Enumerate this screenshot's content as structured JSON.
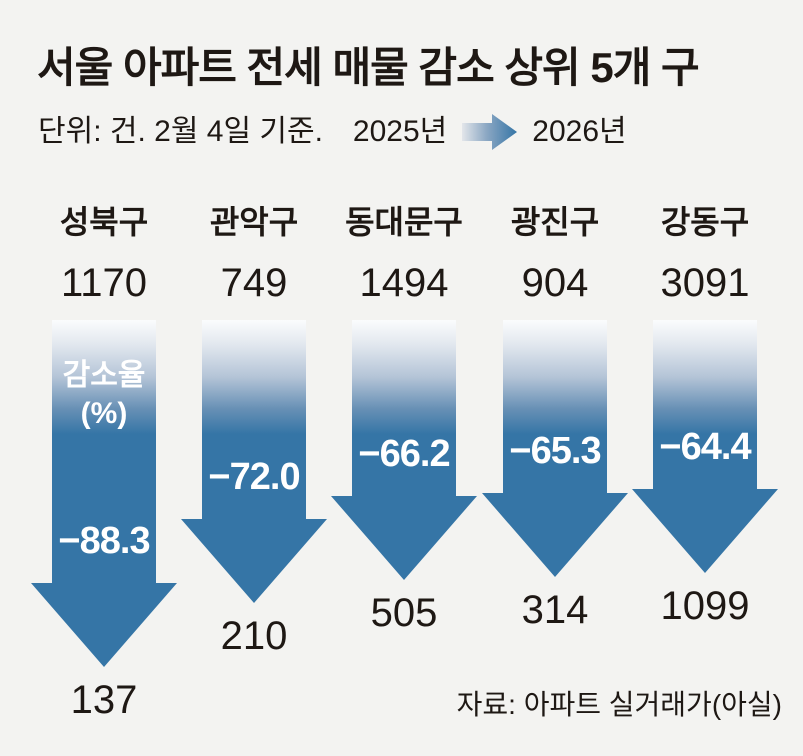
{
  "title": "서울 아파트 전세 매물 감소 상위 5개 구",
  "subtitle": {
    "unit_note": "단위: 건. 2월 4일 기준.",
    "legend_from": "2025년",
    "legend_to": "2026년"
  },
  "source": "자료: 아파트 실거래가(아실)",
  "colors": {
    "background": "#f3f3f1",
    "arrow_blue": "#3575a6",
    "arrow_gradient_top": "#fbfcfd",
    "text_dark": "#1e1814",
    "label_white": "#ffffff"
  },
  "chart_data": {
    "type": "bar",
    "subtype": "pictograph-down-arrows",
    "title": "서울 아파트 전세 매물 감소 상위 5개 구",
    "unit": "건 (listings)",
    "as_of": "2월 4일 기준",
    "categories": [
      "성북구",
      "관악구",
      "동대문구",
      "광진구",
      "강동구"
    ],
    "series": [
      {
        "name": "2025년",
        "values": [
          1170,
          749,
          1494,
          904,
          3091
        ]
      },
      {
        "name": "2026년",
        "values": [
          137,
          210,
          505,
          314,
          1099
        ]
      },
      {
        "name": "감소율(%)",
        "values": [
          -88.3,
          -72.0,
          -66.2,
          -65.3,
          -64.4
        ]
      }
    ],
    "decline_labels": [
      "−88.3",
      "−72.0",
      "−66.2",
      "−65.3",
      "−64.4"
    ],
    "annotation": {
      "line1": "감소율",
      "line2": "(%)"
    },
    "legend_entries": [
      "2025년",
      "2026년"
    ],
    "legend_position": "top",
    "layout_hint": "arrow length proportional to decline percentage; 2025 value above arrow, 2026 value below tip"
  }
}
